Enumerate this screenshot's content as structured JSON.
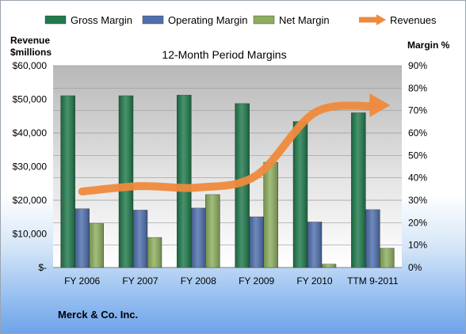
{
  "chart_data": {
    "type": "bar",
    "title": "12-Month Period Margins",
    "company": "Merck & Co. Inc.",
    "ylabel_left": "Revenue $millions",
    "ylabel_right": "Margin %",
    "categories": [
      "FY 2006",
      "FY 2007",
      "FY 2008",
      "FY 2009",
      "FY 2010",
      "TTM 9-2011"
    ],
    "ylim_left": [
      0,
      60000
    ],
    "ylim_right": [
      0,
      90
    ],
    "left_ticks": [
      "$-",
      "$10,000",
      "$20,000",
      "$30,000",
      "$40,000",
      "$50,000",
      "$60,000"
    ],
    "right_ticks": [
      "0%",
      "10%",
      "20%",
      "30%",
      "40%",
      "50%",
      "60%",
      "70%",
      "80%",
      "90%"
    ],
    "legend_position": "top",
    "series": [
      {
        "name": "Gross Margin",
        "kind": "bar",
        "axis": "right",
        "color": "#1f7a4c",
        "values": [
          76.6,
          76.6,
          76.9,
          73.1,
          65.1,
          69.0
        ]
      },
      {
        "name": "Operating Margin",
        "kind": "bar",
        "axis": "right",
        "color": "#4f6fae",
        "values": [
          26.2,
          25.6,
          26.5,
          22.6,
          20.3,
          25.8
        ]
      },
      {
        "name": "Net Margin",
        "kind": "bar",
        "axis": "right",
        "color": "#8dae5e",
        "values": [
          19.6,
          13.4,
          32.5,
          46.9,
          1.5,
          8.6
        ]
      },
      {
        "name": "Revenues",
        "kind": "line",
        "axis": "left",
        "color": "#ef8a3c",
        "values": [
          22600,
          24200,
          23800,
          27400,
          46000,
          48000
        ]
      }
    ]
  }
}
